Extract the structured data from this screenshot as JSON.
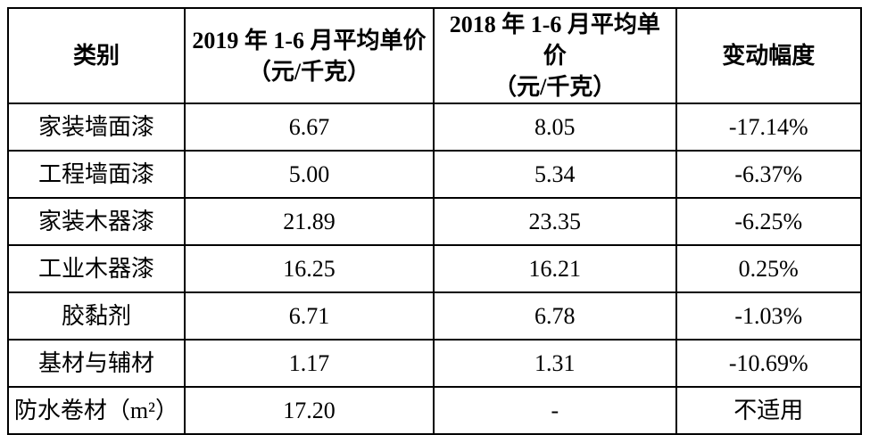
{
  "colors": {
    "text": "#000000",
    "border": "#000000",
    "background": "#ffffff"
  },
  "table": {
    "headers": {
      "category": "类别",
      "price_2019_line1": "2019 年 1-6 月平均单价",
      "price_2019_line2": "（元/千克）",
      "price_2018_line1": "2018 年 1-6 月平均单价",
      "price_2018_line2": "（元/千克）",
      "change": "变动幅度"
    },
    "rows": [
      {
        "category": "家装墙面漆",
        "price_2019": "6.67",
        "price_2018": "8.05",
        "change": "-17.14%"
      },
      {
        "category": "工程墙面漆",
        "price_2019": "5.00",
        "price_2018": "5.34",
        "change": "-6.37%"
      },
      {
        "category": "家装木器漆",
        "price_2019": "21.89",
        "price_2018": "23.35",
        "change": "-6.25%"
      },
      {
        "category": "工业木器漆",
        "price_2019": "16.25",
        "price_2018": "16.21",
        "change": "0.25%"
      },
      {
        "category": "胶黏剂",
        "price_2019": "6.71",
        "price_2018": "6.78",
        "change": "-1.03%"
      },
      {
        "category": "基材与辅材",
        "price_2019": "1.17",
        "price_2018": "1.31",
        "change": "-10.69%"
      },
      {
        "category": "防水卷材（m²）",
        "price_2019": "17.20",
        "price_2018": "-",
        "change": "不适用"
      }
    ]
  }
}
